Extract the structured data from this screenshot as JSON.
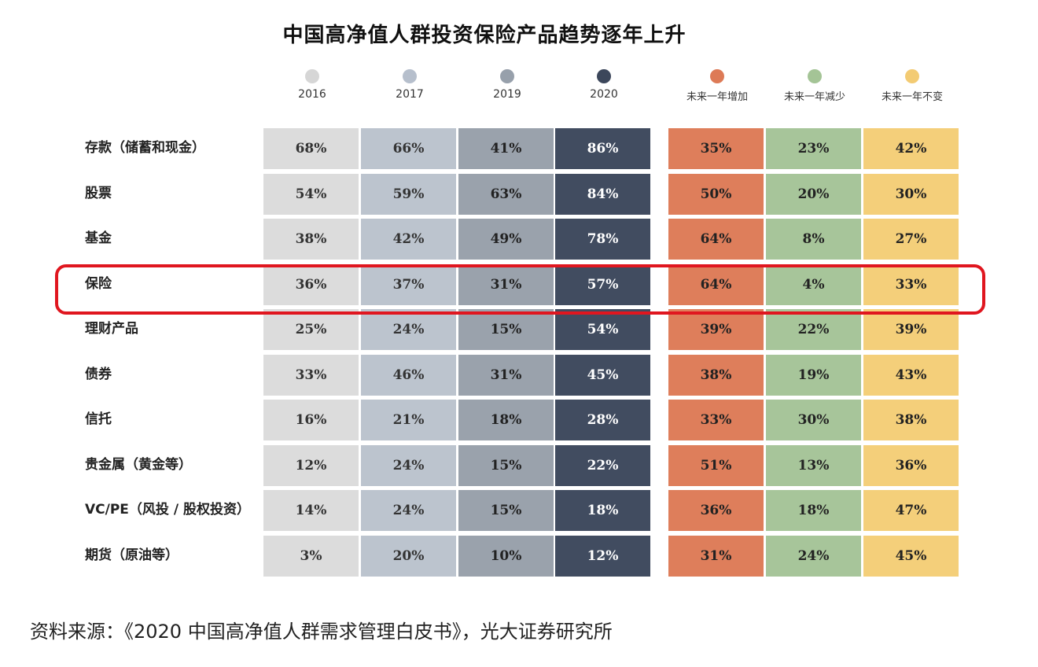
{
  "chart_data": {
    "type": "table",
    "title": "中国高净值人群投资保险产品趋势逐年上升",
    "columns": [
      {
        "label": "2016",
        "color": "#dcdcdc",
        "dot": "#d6d6d6",
        "text": "#333333"
      },
      {
        "label": "2017",
        "color": "#bcc4ce",
        "dot": "#b6bfcc",
        "text": "#333333"
      },
      {
        "label": "2019",
        "color": "#9aa2ac",
        "dot": "#97a0ab",
        "text": "#222222"
      },
      {
        "label": "2020",
        "color": "#414c60",
        "dot": "#3c475b",
        "text": "#ffffff"
      },
      {
        "label": "未来一年增加",
        "color": "#de7e5b",
        "dot": "#dd7a56",
        "text": "#222222"
      },
      {
        "label": "未来一年减少",
        "color": "#a7c59a",
        "dot": "#a4c496",
        "text": "#222222"
      },
      {
        "label": "未来一年不变",
        "color": "#f4cf7a",
        "dot": "#f3cb73",
        "text": "#222222"
      }
    ],
    "rows": [
      {
        "label": "存款（储蓄和现金）",
        "values": [
          "68%",
          "66%",
          "41%",
          "86%",
          "35%",
          "23%",
          "42%"
        ]
      },
      {
        "label": "股票",
        "values": [
          "54%",
          "59%",
          "63%",
          "84%",
          "50%",
          "20%",
          "30%"
        ]
      },
      {
        "label": "基金",
        "values": [
          "38%",
          "42%",
          "49%",
          "78%",
          "64%",
          "8%",
          "27%"
        ]
      },
      {
        "label": "保险",
        "values": [
          "36%",
          "37%",
          "31%",
          "57%",
          "64%",
          "4%",
          "33%"
        ]
      },
      {
        "label": "理财产品",
        "values": [
          "25%",
          "24%",
          "15%",
          "54%",
          "39%",
          "22%",
          "39%"
        ]
      },
      {
        "label": "债券",
        "values": [
          "33%",
          "46%",
          "31%",
          "45%",
          "38%",
          "19%",
          "43%"
        ]
      },
      {
        "label": "信托",
        "values": [
          "16%",
          "21%",
          "18%",
          "28%",
          "33%",
          "30%",
          "38%"
        ]
      },
      {
        "label": "贵金属（黄金等）",
        "values": [
          "12%",
          "24%",
          "15%",
          "22%",
          "51%",
          "13%",
          "36%"
        ]
      },
      {
        "label": "VC/PE（风投 / 股权投资）",
        "values": [
          "14%",
          "24%",
          "15%",
          "18%",
          "36%",
          "18%",
          "47%"
        ]
      },
      {
        "label": "期货（原油等）",
        "values": [
          "3%",
          "20%",
          "10%",
          "12%",
          "31%",
          "24%",
          "45%"
        ]
      }
    ],
    "highlighted_row": "保险",
    "highlight_color": "#e0161f"
  },
  "source": "资料来源：《2020 中国高净值人群需求管理白皮书》，光大证券研究所"
}
